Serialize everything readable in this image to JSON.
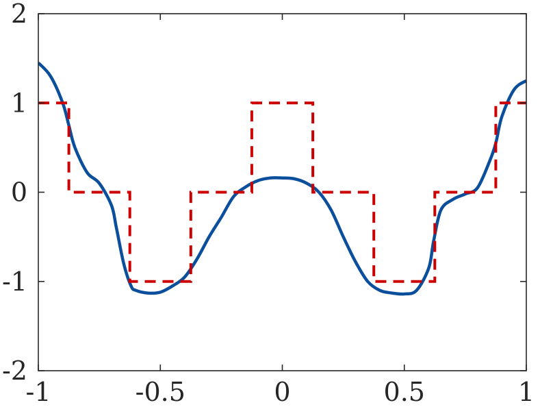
{
  "chart_data": {
    "type": "line",
    "title": "",
    "xlabel": "",
    "ylabel": "",
    "xlim": [
      -1,
      1
    ],
    "ylim": [
      -2,
      2
    ],
    "grid": false,
    "x_ticks": [
      {
        "value": -1,
        "label": "-1"
      },
      {
        "value": -0.5,
        "label": "-0.5"
      },
      {
        "value": 0,
        "label": "0"
      },
      {
        "value": 0.5,
        "label": "0.5"
      },
      {
        "value": 1,
        "label": "1"
      }
    ],
    "y_ticks": [
      {
        "value": -2,
        "label": "-2"
      },
      {
        "value": -1,
        "label": "-1"
      },
      {
        "value": 0,
        "label": "0"
      },
      {
        "value": 1,
        "label": "1"
      },
      {
        "value": 2,
        "label": "2"
      }
    ],
    "series": [
      {
        "style": "solid",
        "color": "#0b4f9c",
        "x": [
          -1.0,
          -0.95,
          -0.9,
          -0.875,
          -0.85,
          -0.8,
          -0.75,
          -0.7,
          -0.68,
          -0.65,
          -0.62,
          -0.6,
          -0.55,
          -0.5,
          -0.45,
          -0.4,
          -0.35,
          -0.3,
          -0.25,
          -0.2,
          -0.15,
          -0.1,
          -0.05,
          0.0,
          0.05,
          0.1,
          0.15,
          0.2,
          0.25,
          0.3,
          0.35,
          0.4,
          0.45,
          0.5,
          0.55,
          0.6,
          0.62,
          0.65,
          0.7,
          0.75,
          0.8,
          0.85,
          0.875,
          0.9,
          0.95,
          1.0
        ],
        "y": [
          1.45,
          1.3,
          1.0,
          0.75,
          0.5,
          0.22,
          0.1,
          -0.15,
          -0.4,
          -0.8,
          -1.05,
          -1.1,
          -1.13,
          -1.12,
          -1.05,
          -0.95,
          -0.75,
          -0.5,
          -0.28,
          -0.05,
          0.06,
          0.13,
          0.16,
          0.16,
          0.15,
          0.1,
          0.0,
          -0.2,
          -0.5,
          -0.78,
          -1.0,
          -1.1,
          -1.13,
          -1.14,
          -1.1,
          -0.85,
          -0.55,
          -0.2,
          -0.08,
          -0.02,
          0.05,
          0.35,
          0.55,
          0.85,
          1.15,
          1.25
        ]
      },
      {
        "style": "dashed",
        "color": "#cc0000",
        "x": [
          -1.0,
          -0.875,
          -0.875,
          -0.625,
          -0.625,
          -0.375,
          -0.375,
          -0.125,
          -0.125,
          0.125,
          0.125,
          0.375,
          0.375,
          0.625,
          0.625,
          0.875,
          0.875,
          1.0
        ],
        "y": [
          1,
          1,
          0,
          0,
          -1,
          -1,
          0,
          0,
          1,
          1,
          0,
          0,
          -1,
          -1,
          0,
          0,
          1,
          1
        ]
      }
    ]
  }
}
